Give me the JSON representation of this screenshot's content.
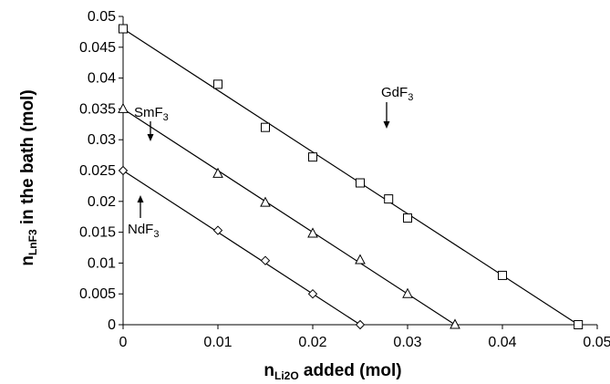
{
  "chart_data": {
    "type": "scatter",
    "xlabel": {
      "main": "n",
      "sub": "Li2O",
      "rest": " added (mol)"
    },
    "ylabel": {
      "main": "n",
      "sub": "LnF3",
      "rest": " in the bath (mol)"
    },
    "xlim": [
      0,
      0.05
    ],
    "ylim": [
      0,
      0.05
    ],
    "xticks": [
      "0",
      "0.01",
      "0.02",
      "0.03",
      "0.04",
      "0.05"
    ],
    "yticks": [
      "0",
      "0.005",
      "0.01",
      "0.015",
      "0.02",
      "0.025",
      "0.03",
      "0.035",
      "0.04",
      "0.045",
      "0.05"
    ],
    "grid": false,
    "series": [
      {
        "name": {
          "main": "GdF",
          "sub": "3"
        },
        "marker": "square",
        "x": [
          0,
          0.01,
          0.015,
          0.02,
          0.025,
          0.028,
          0.03,
          0.04,
          0.048
        ],
        "y": [
          0.048,
          0.039,
          0.032,
          0.0272,
          0.023,
          0.0204,
          0.0173,
          0.008,
          0
        ],
        "fit_line": {
          "x": [
            0,
            0.048
          ],
          "y": [
            0.048,
            0
          ]
        }
      },
      {
        "name": {
          "main": "SmF",
          "sub": "3"
        },
        "marker": "triangle",
        "x": [
          0,
          0.01,
          0.015,
          0.02,
          0.025,
          0.03,
          0.035
        ],
        "y": [
          0.035,
          0.0245,
          0.0198,
          0.0148,
          0.0105,
          0.005,
          0
        ],
        "fit_line": {
          "x": [
            0,
            0.035
          ],
          "y": [
            0.035,
            0
          ]
        }
      },
      {
        "name": {
          "main": "NdF",
          "sub": "3"
        },
        "marker": "diamond",
        "x": [
          0,
          0.01,
          0.015,
          0.02,
          0.025
        ],
        "y": [
          0.025,
          0.0153,
          0.0104,
          0.005,
          0
        ],
        "fit_line": {
          "x": [
            0,
            0.025
          ],
          "y": [
            0.025,
            0
          ]
        }
      }
    ]
  }
}
